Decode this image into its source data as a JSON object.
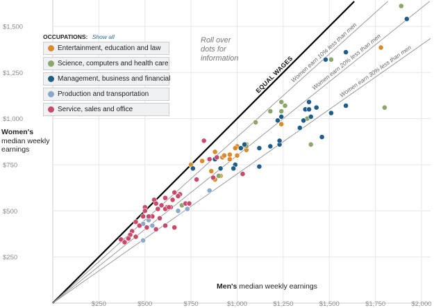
{
  "legend": {
    "title": "OCCUPATIONS:",
    "show_all": "Show all",
    "items": [
      {
        "label": "Entertainment, education and law",
        "color": "#d98a2b"
      },
      {
        "label": "Science, computers and health care",
        "color": "#8aa66a"
      },
      {
        "label": "Management, business and financial",
        "color": "#1e5d8a"
      },
      {
        "label": "Production and transportation",
        "color": "#8aa8c8"
      },
      {
        "label": "Service, sales and office",
        "color": "#c94a68"
      }
    ]
  },
  "hint_lines": [
    "Roll over",
    "dots for",
    "information"
  ],
  "y_axis_label": {
    "bold": "Women's",
    "rest_lines": [
      "median weekly",
      "earnings"
    ]
  },
  "x_axis_label": {
    "bold": "Men's",
    "rest": "median weekly earnings"
  },
  "chart_data": {
    "type": "scatter",
    "xlim": [
      0,
      2000
    ],
    "ylim": [
      0,
      1625
    ],
    "x_ticks": [
      {
        "value": 250,
        "label": "$250"
      },
      {
        "value": 500,
        "label": "$500"
      },
      {
        "value": 750,
        "label": "$750"
      },
      {
        "value": 1000,
        "label": "$1,000"
      },
      {
        "value": 1250,
        "label": "$1,250"
      },
      {
        "value": 1500,
        "label": "$1,500"
      },
      {
        "value": 1750,
        "label": "$1,750"
      },
      {
        "value": 2000,
        "label": "$2,000"
      }
    ],
    "y_ticks": [
      {
        "value": 250,
        "label": "$250"
      },
      {
        "value": 500,
        "label": "$500"
      },
      {
        "value": 750,
        "label": "$750"
      },
      {
        "value": 1000,
        "label": "$1,000"
      },
      {
        "value": 1250,
        "label": "$1,250"
      },
      {
        "value": 1500,
        "label": "$1,500"
      }
    ],
    "reference_lines": [
      {
        "ratio": 1.0,
        "label": "EQUAL WAGES",
        "emphasis": true
      },
      {
        "ratio": 0.9,
        "label": "Women earn 10% less than men",
        "emphasis": false
      },
      {
        "ratio": 0.8,
        "label": "Women earn 20% less than men",
        "emphasis": false
      },
      {
        "ratio": 0.7,
        "label": "Women earn 30% less than men",
        "emphasis": false
      }
    ],
    "series": [
      {
        "name": "Entertainment, education and law",
        "color": "#d98a2b",
        "points": [
          [
            1780,
            1385
          ],
          [
            1240,
            970
          ],
          [
            880,
            820
          ],
          [
            810,
            770
          ],
          [
            750,
            750
          ],
          [
            1000,
            800
          ],
          [
            1050,
            860
          ],
          [
            920,
            790
          ],
          [
            960,
            780
          ],
          [
            910,
            690
          ],
          [
            860,
            715
          ],
          [
            880,
            670
          ],
          [
            1040,
            850
          ],
          [
            1000,
            850
          ],
          [
            1050,
            830
          ],
          [
            990,
            840
          ],
          [
            960,
            805
          ],
          [
            930,
            800
          ]
        ]
      },
      {
        "name": "Science, computers and health care",
        "color": "#8aa66a",
        "points": [
          [
            1890,
            1610
          ],
          [
            1510,
            1320
          ],
          [
            1240,
            1090
          ],
          [
            1260,
            1070
          ],
          [
            1240,
            1040
          ],
          [
            1180,
            1040
          ],
          [
            1100,
            980
          ],
          [
            1050,
            850
          ],
          [
            1800,
            1060
          ],
          [
            1380,
            1000
          ],
          [
            1400,
            860
          ],
          [
            900,
            690
          ],
          [
            700,
            530
          ]
        ]
      },
      {
        "name": "Management, business and financial",
        "color": "#1e5d8a",
        "points": [
          [
            1920,
            1540
          ],
          [
            1590,
            1360
          ],
          [
            1480,
            1320
          ],
          [
            1430,
            1060
          ],
          [
            1390,
            1090
          ],
          [
            1370,
            1050
          ],
          [
            1360,
            990
          ],
          [
            1590,
            1070
          ],
          [
            1510,
            1030
          ],
          [
            1400,
            1010
          ],
          [
            1460,
            900
          ],
          [
            1240,
            1010
          ],
          [
            1230,
            860
          ],
          [
            1180,
            850
          ],
          [
            1120,
            840
          ],
          [
            1040,
            860
          ],
          [
            1020,
            840
          ],
          [
            990,
            750
          ],
          [
            980,
            730
          ],
          [
            1120,
            740
          ],
          [
            910,
            730
          ],
          [
            880,
            780
          ],
          [
            760,
            730
          ],
          [
            1230,
            880
          ],
          [
            1340,
            950
          ],
          [
            1220,
            990
          ],
          [
            1390,
            1050
          ]
        ]
      },
      {
        "name": "Production and transportation",
        "color": "#8aa8c8",
        "points": [
          [
            850,
            610
          ],
          [
            730,
            510
          ],
          [
            520,
            450
          ],
          [
            490,
            430
          ],
          [
            490,
            340
          ],
          [
            680,
            500
          ],
          [
            540,
            420
          ]
        ]
      },
      {
        "name": "Service, sales and office",
        "color": "#c94a68",
        "points": [
          [
            820,
            880
          ],
          [
            850,
            780
          ],
          [
            890,
            790
          ],
          [
            780,
            670
          ],
          [
            870,
            680
          ],
          [
            1030,
            700
          ],
          [
            660,
            600
          ],
          [
            690,
            590
          ],
          [
            650,
            560
          ],
          [
            680,
            580
          ],
          [
            720,
            540
          ],
          [
            640,
            520
          ],
          [
            620,
            520
          ],
          [
            590,
            530
          ],
          [
            610,
            570
          ],
          [
            550,
            560
          ],
          [
            570,
            510
          ],
          [
            560,
            540
          ],
          [
            500,
            520
          ],
          [
            500,
            500
          ],
          [
            490,
            470
          ],
          [
            540,
            470
          ],
          [
            580,
            460
          ],
          [
            610,
            420
          ],
          [
            660,
            410
          ],
          [
            560,
            400
          ],
          [
            510,
            410
          ],
          [
            450,
            440
          ],
          [
            470,
            420
          ],
          [
            430,
            390
          ],
          [
            420,
            370
          ],
          [
            410,
            350
          ],
          [
            380,
            340
          ],
          [
            370,
            345
          ],
          [
            390,
            330
          ],
          [
            450,
            360
          ],
          [
            520,
            470
          ],
          [
            610,
            510
          ],
          [
            740,
            540
          ],
          [
            630,
            520
          ]
        ]
      }
    ]
  }
}
